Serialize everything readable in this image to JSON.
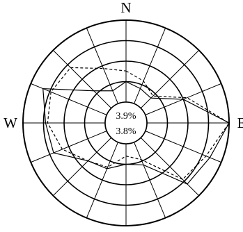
{
  "chart_data": {
    "type": "radar",
    "categories": [
      "N",
      null,
      null,
      null,
      "E",
      null,
      null,
      null,
      null,
      null,
      null,
      null,
      "W",
      null,
      null,
      null
    ],
    "series": [
      {
        "color": "#000000",
        "dash": false,
        "values": [
          5,
          4,
          3.5,
          10,
          20,
          17,
          16,
          6,
          5,
          7,
          8,
          14,
          14.5,
          16.8,
          6,
          3.4
        ]
      },
      {
        "color": "#000000",
        "dash": true,
        "values": [
          7.6,
          6,
          4.2,
          11,
          20,
          16,
          14.4,
          4.6,
          3,
          6.6,
          8,
          11.7,
          14,
          14.7,
          14,
          9.3
        ]
      }
    ],
    "annotations": [
      "3.9%",
      "3.8%"
    ],
    "rlim": [
      0,
      20
    ],
    "rticks": [
      0,
      5,
      10,
      15,
      20
    ],
    "grid": true
  }
}
